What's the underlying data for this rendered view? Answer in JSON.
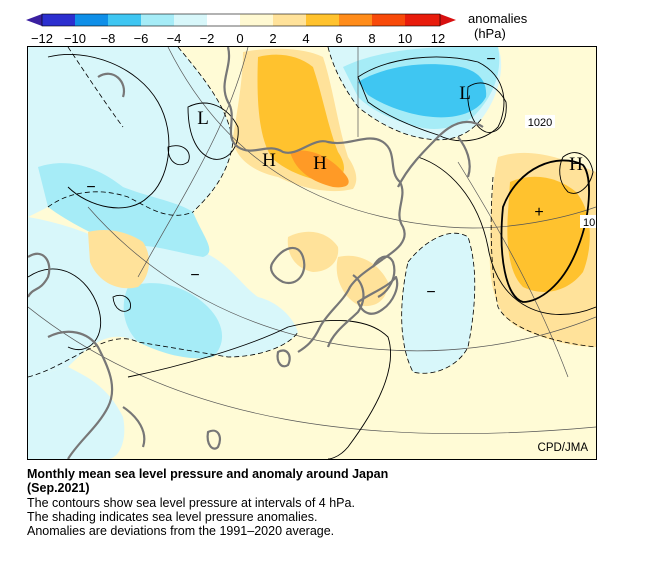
{
  "legend": {
    "title": "anomalies",
    "unit": "(hPa)",
    "ticks": [
      "−12",
      "−10",
      "−8",
      "−6",
      "−4",
      "−2",
      "0",
      "2",
      "4",
      "6",
      "8",
      "10",
      "12"
    ],
    "colors": [
      "#2c2fcf",
      "#0f8fe8",
      "#3fc6f2",
      "#a6ecf7",
      "#d8f7fa",
      "#fff9d2",
      "#ffe29a",
      "#ffc22e",
      "#ff8c1a",
      "#f84a0a"
    ]
  },
  "map": {
    "credit": "CPD/JMA",
    "highs": [
      "H",
      "H",
      "H"
    ],
    "lows": [
      "L",
      "L"
    ],
    "contour_labels": [
      "1020",
      "10"
    ],
    "signs": [
      "−",
      "−",
      "−",
      "−",
      "+"
    ]
  },
  "caption": {
    "title": "Monthly mean sea level pressure and anomaly around Japan",
    "period": "(Sep.2021)",
    "line1": "The contours show sea level pressure at intervals of 4 hPa.",
    "line2": "The shading indicates sea level pressure anomalies.",
    "line3": "Anomalies are deviations from the 1991–2020 average."
  }
}
